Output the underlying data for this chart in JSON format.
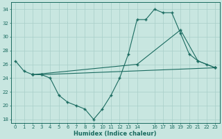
{
  "xlabel": "Humidex (Indice chaleur)",
  "bg_color": "#c8e6e0",
  "grid_color": "#a8cfc8",
  "line_color": "#1a6b60",
  "xlim": [
    -0.5,
    23.5
  ],
  "ylim": [
    17.5,
    35.0
  ],
  "xticks": [
    0,
    1,
    2,
    3,
    4,
    5,
    6,
    7,
    8,
    9,
    10,
    11,
    12,
    13,
    14,
    16,
    17,
    18,
    19,
    20,
    21,
    22,
    23
  ],
  "yticks": [
    18,
    20,
    22,
    24,
    26,
    28,
    30,
    32,
    34
  ],
  "line1_x": [
    0,
    1,
    2,
    3,
    4,
    5,
    6,
    7,
    8,
    9,
    10,
    11,
    12,
    13,
    14,
    15,
    16,
    17,
    18,
    19,
    20,
    21,
    22,
    23
  ],
  "line1_y": [
    26.5,
    25.0,
    24.5,
    24.5,
    24.0,
    21.5,
    20.5,
    20.0,
    19.5,
    18.0,
    19.5,
    21.5,
    24.0,
    27.5,
    32.5,
    32.5,
    34.0,
    33.5,
    33.5,
    30.5,
    27.5,
    26.5,
    26.0,
    25.5
  ],
  "line2_x": [
    2,
    14,
    19,
    21,
    23
  ],
  "line2_y": [
    24.5,
    26.0,
    31.0,
    26.5,
    25.5
  ],
  "line3_x": [
    2,
    3,
    23
  ],
  "line3_y": [
    24.5,
    24.5,
    25.5
  ]
}
